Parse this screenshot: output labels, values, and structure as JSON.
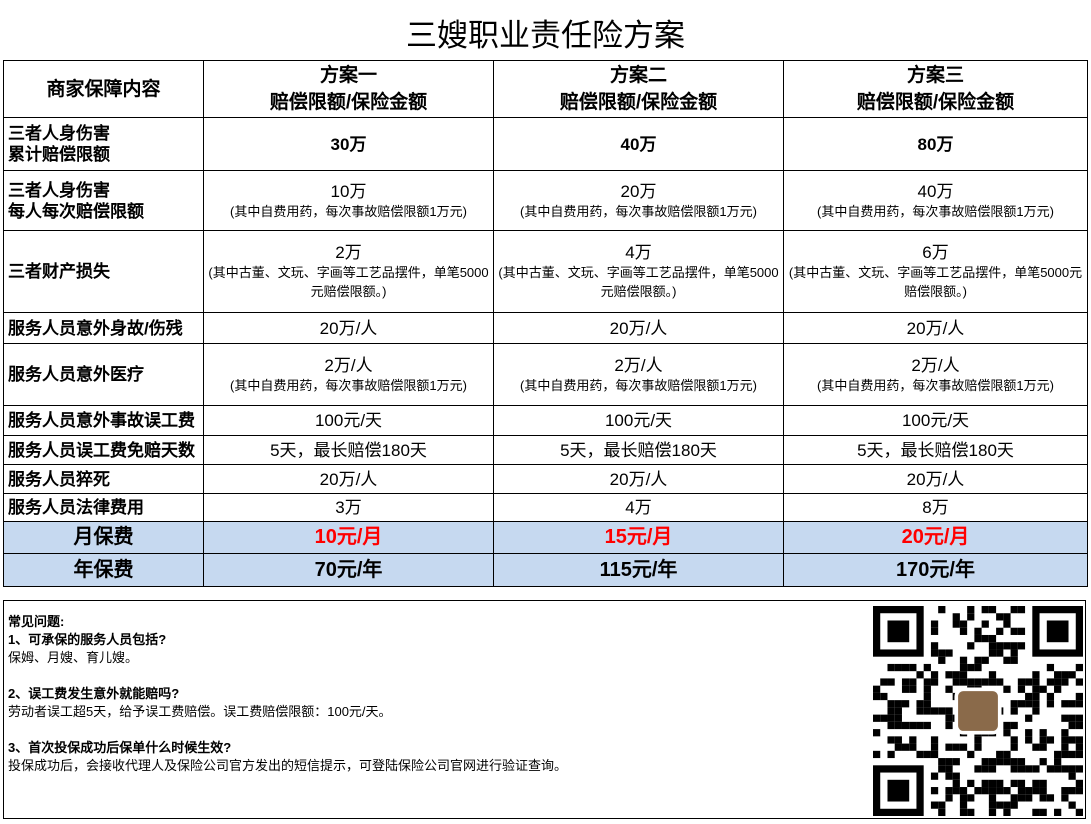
{
  "title": "三嫂职业责任险方案",
  "header": {
    "col0": "商家保障内容",
    "plans": [
      {
        "name": "方案一",
        "sub": "赔偿限额/保险金额"
      },
      {
        "name": "方案二",
        "sub": "赔偿限额/保险金额"
      },
      {
        "name": "方案三",
        "sub": "赔偿限额/保险金额"
      }
    ]
  },
  "rows": [
    {
      "label": "三者人身伤害\n累计赔偿限额",
      "values": [
        {
          "main": "30万"
        },
        {
          "main": "40万"
        },
        {
          "main": "80万"
        }
      ]
    },
    {
      "label": "三者人身伤害\n每人每次赔偿限额",
      "values": [
        {
          "main": "10万",
          "note": "(其中自费用药，每次事故赔偿限额1万元)"
        },
        {
          "main": "20万",
          "note": "(其中自费用药，每次事故赔偿限额1万元)"
        },
        {
          "main": "40万",
          "note": "(其中自费用药，每次事故赔偿限额1万元)"
        }
      ]
    },
    {
      "label": "三者财产损失",
      "values": [
        {
          "main": "2万",
          "note": "(其中古董、文玩、字画等工艺品摆件，单笔5000元赔偿限额。)"
        },
        {
          "main": "4万",
          "note": "(其中古董、文玩、字画等工艺品摆件，单笔5000元赔偿限额。)"
        },
        {
          "main": "6万",
          "note": "(其中古董、文玩、字画等工艺品摆件，单笔5000元赔偿限额。)"
        }
      ]
    },
    {
      "label": "服务人员意外身故/伤残",
      "values": [
        {
          "main": "20万/人"
        },
        {
          "main": "20万/人"
        },
        {
          "main": "20万/人"
        }
      ]
    },
    {
      "label": "服务人员意外医疗",
      "values": [
        {
          "main": "2万/人",
          "note": "(其中自费用药，每次事故赔偿限额1万元)"
        },
        {
          "main": "2万/人",
          "note": "(其中自费用药，每次事故赔偿限额1万元)"
        },
        {
          "main": "2万/人",
          "note": "(其中自费用药，每次事故赔偿限额1万元)"
        }
      ]
    },
    {
      "label": "服务人员意外事故误工费",
      "values": [
        {
          "main": "100元/天"
        },
        {
          "main": "100元/天"
        },
        {
          "main": "100元/天"
        }
      ]
    },
    {
      "label": "服务人员误工费免赔天数",
      "values": [
        {
          "main": "5天，最长赔偿180天"
        },
        {
          "main": "5天，最长赔偿180天"
        },
        {
          "main": "5天，最长赔偿180天"
        }
      ]
    },
    {
      "label": "服务人员猝死",
      "values": [
        {
          "main": "20万/人"
        },
        {
          "main": "20万/人"
        },
        {
          "main": "20万/人"
        }
      ]
    },
    {
      "label": "服务人员法律费用",
      "values": [
        {
          "main": "3万"
        },
        {
          "main": "4万"
        },
        {
          "main": "8万"
        }
      ]
    }
  ],
  "fees": {
    "monthly": {
      "label": "月保费",
      "values": [
        "10元/月",
        "15元/月",
        "20元/月"
      ],
      "color": "#ff0000"
    },
    "yearly": {
      "label": "年保费",
      "values": [
        "70元/年",
        "115元/年",
        "170元/年"
      ]
    }
  },
  "colors": {
    "fee_row_bg": "#c6d9f0"
  },
  "faq": {
    "heading": "常见问题:",
    "items": [
      {
        "q": "1、可承保的服务人员包括?",
        "a": "保姆、月嫂、育儿嫂。"
      },
      {
        "q": "2、误工费发生意外就能赔吗?",
        "a": "劳动者误工超5天，给予误工费赔偿。误工费赔偿限额：100元/天。"
      },
      {
        "q": "3、首次投保成功后保单什么时候生效?",
        "a": "投保成功后，会接收代理人及保险公司官方发出的短信提示，可登陆保险公司官网进行验证查询。"
      }
    ]
  },
  "qr_icon": "qr-code"
}
